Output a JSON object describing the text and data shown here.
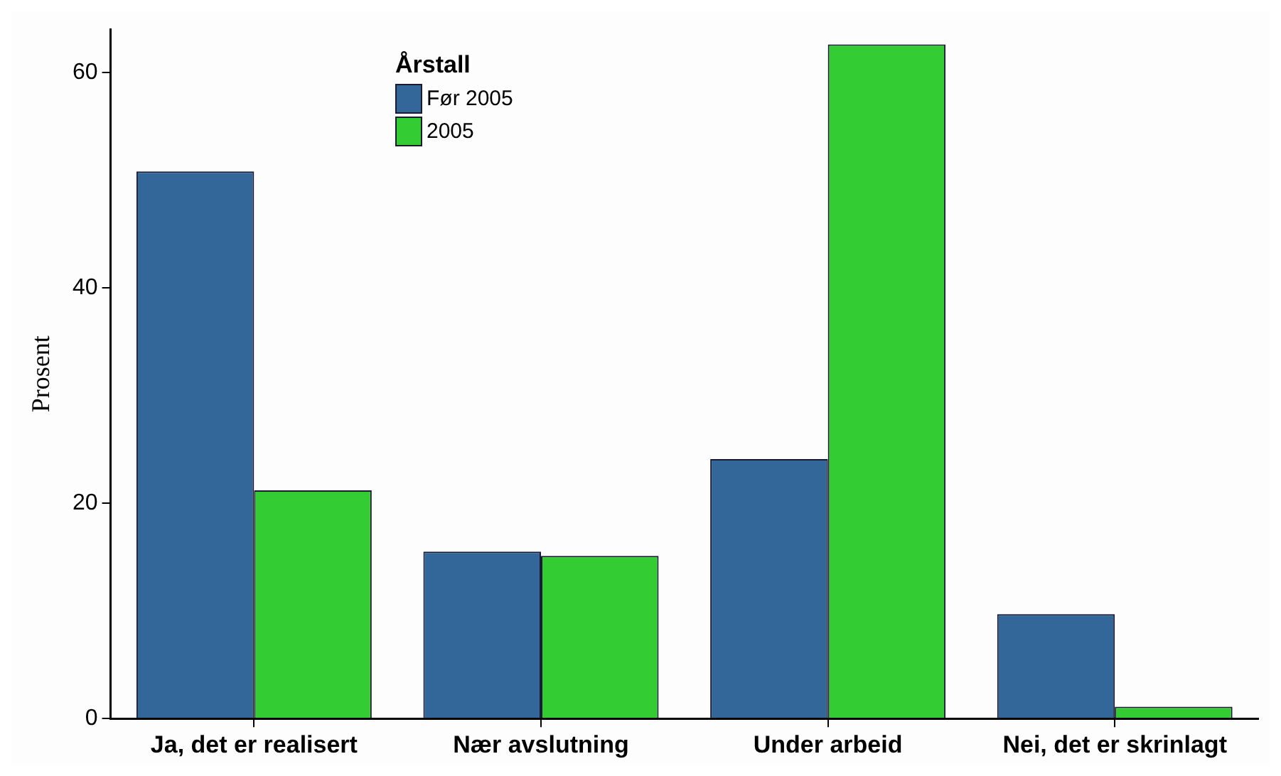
{
  "chart_data": {
    "type": "bar",
    "ylabel": "Prosent",
    "legend_title": "Årstall",
    "legend": "top left",
    "categories": [
      "Ja, det er realisert",
      "Nær avslutning",
      "Under arbeid",
      "Nei, det er skrinlagt"
    ],
    "series": [
      {
        "name": "Før 2005",
        "color": "#336699",
        "values": [
          50.8,
          15.5,
          24.1,
          9.7
        ]
      },
      {
        "name": "2005",
        "color": "#33cc33",
        "values": [
          21.2,
          15.1,
          62.6,
          1.1
        ]
      }
    ],
    "ylim": [
      0,
      64
    ],
    "yticks": [
      0,
      20,
      40,
      60
    ],
    "grid": false
  }
}
